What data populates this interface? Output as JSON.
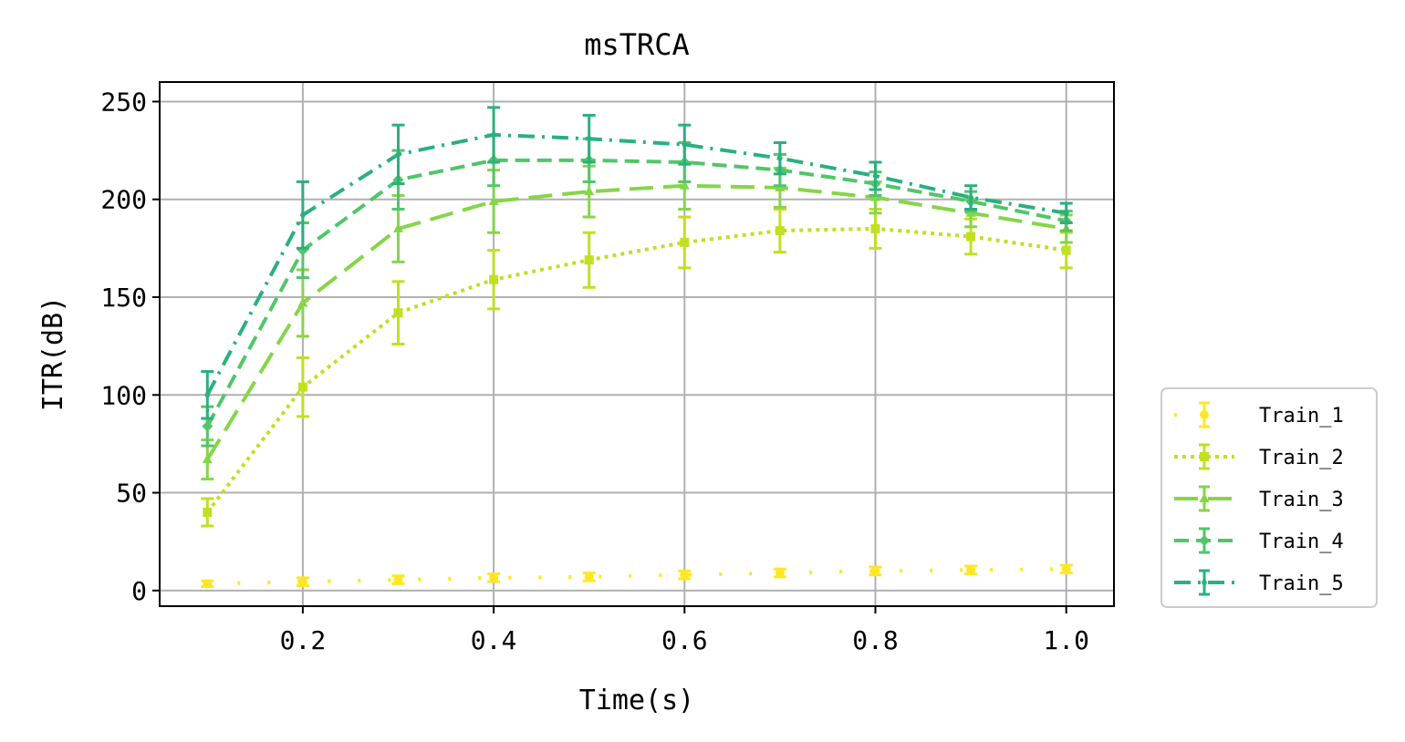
{
  "chart_data": {
    "type": "line",
    "title": "msTRCA",
    "xlabel": "Time(s)",
    "ylabel": "ITR(dB)",
    "xlim": [
      0.05,
      1.05
    ],
    "ylim": [
      -8,
      260
    ],
    "xticks": [
      0.2,
      0.4,
      0.6,
      0.8,
      1.0
    ],
    "xtick_labels": [
      "0.2",
      "0.4",
      "0.6",
      "0.8",
      "1.0"
    ],
    "yticks": [
      0,
      50,
      100,
      150,
      200,
      250
    ],
    "ytick_labels": [
      "0",
      "50",
      "100",
      "150",
      "200",
      "250"
    ],
    "grid": true,
    "legend_position": "outside-right-bottom",
    "x": [
      0.1,
      0.2,
      0.3,
      0.4,
      0.5,
      0.6,
      0.7,
      0.8,
      0.9,
      1.0
    ],
    "series": [
      {
        "name": "Train_1",
        "color": "#fde725",
        "linestyle": "loosely-dotted",
        "marker": "circle",
        "values": [
          3.5,
          4.5,
          5.5,
          6.5,
          7,
          8,
          9,
          10,
          10.5,
          11
        ],
        "errors": [
          1.5,
          2,
          2,
          2,
          2,
          2,
          2,
          2,
          2,
          2
        ]
      },
      {
        "name": "Train_2",
        "color": "#c2df23",
        "linestyle": "dotted",
        "marker": "square",
        "values": [
          40,
          104,
          142,
          159,
          169,
          178,
          184,
          185,
          181,
          174
        ],
        "errors": [
          7,
          15,
          16,
          15,
          14,
          13,
          11,
          10,
          9,
          9
        ]
      },
      {
        "name": "Train_3",
        "color": "#86d549",
        "linestyle": "long-dash",
        "marker": "triangle",
        "values": [
          67,
          147,
          185,
          199,
          204,
          207,
          206,
          201,
          193,
          185
        ],
        "errors": [
          10,
          17,
          17,
          16,
          13,
          12,
          10,
          8,
          7,
          7
        ]
      },
      {
        "name": "Train_4",
        "color": "#52c569",
        "linestyle": "dashed",
        "marker": "diamond",
        "values": [
          84,
          174,
          210,
          220,
          220,
          219,
          215,
          208,
          199,
          189
        ],
        "errors": [
          10,
          14,
          15,
          13,
          11,
          10,
          8,
          6,
          5,
          5
        ]
      },
      {
        "name": "Train_5",
        "color": "#2ab07f",
        "linestyle": "dash-dot",
        "marker": "thin-diamond",
        "values": [
          100,
          192,
          223,
          233,
          231,
          228,
          221,
          212,
          201,
          193
        ],
        "errors": [
          12,
          17,
          15,
          14,
          12,
          10,
          8,
          7,
          6,
          5
        ]
      }
    ]
  }
}
